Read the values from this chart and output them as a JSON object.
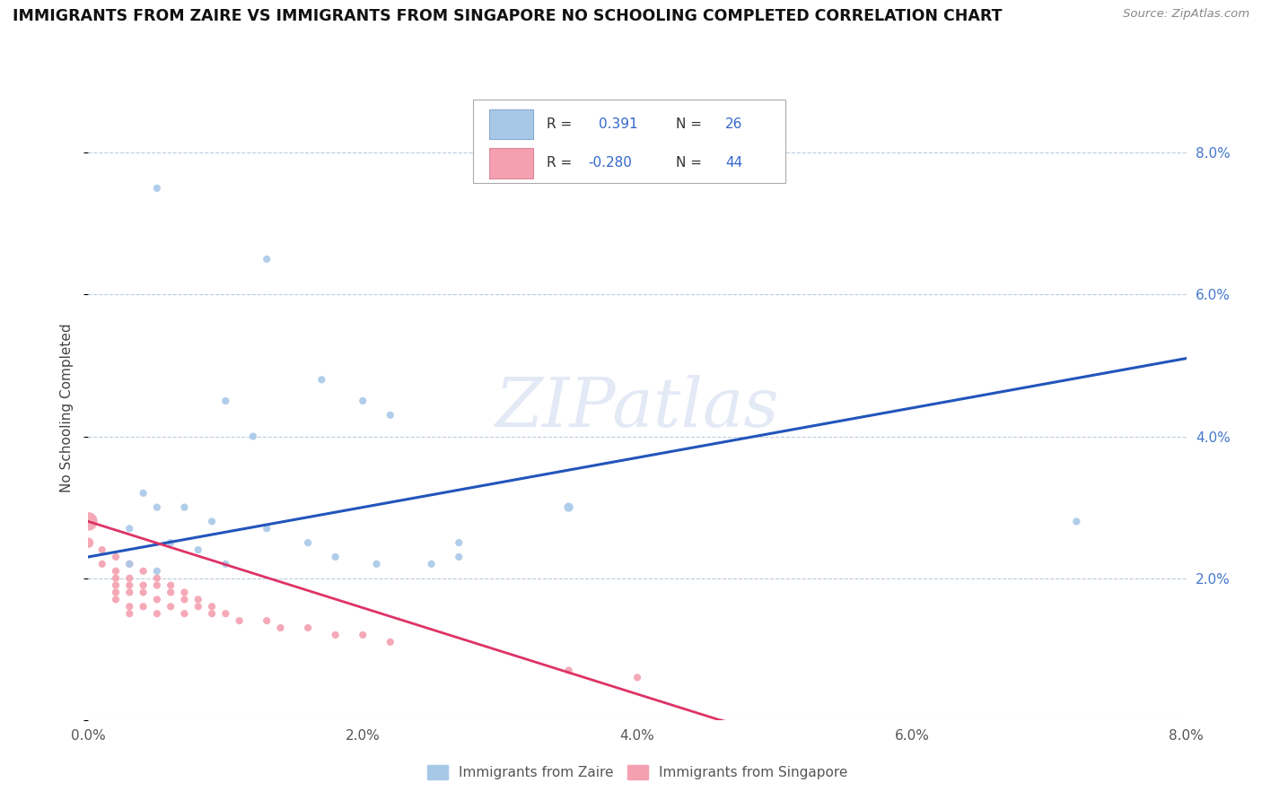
{
  "title": "IMMIGRANTS FROM ZAIRE VS IMMIGRANTS FROM SINGAPORE NO SCHOOLING COMPLETED CORRELATION CHART",
  "source": "Source: ZipAtlas.com",
  "ylabel": "No Schooling Completed",
  "xlim": [
    0.0,
    0.08
  ],
  "ylim": [
    0.0,
    0.088
  ],
  "ytick_labels": [
    "",
    "2.0%",
    "4.0%",
    "6.0%",
    "8.0%"
  ],
  "ytick_values": [
    0.0,
    0.02,
    0.04,
    0.06,
    0.08
  ],
  "xtick_labels": [
    "0.0%",
    "2.0%",
    "4.0%",
    "6.0%",
    "8.0%"
  ],
  "xtick_values": [
    0.0,
    0.02,
    0.04,
    0.06,
    0.08
  ],
  "zaire_R": 0.391,
  "zaire_N": 26,
  "singapore_R": -0.28,
  "singapore_N": 44,
  "zaire_color": "#a8c8e8",
  "singapore_color": "#f4a0b0",
  "zaire_line_color": "#2255bb",
  "singapore_line_color": "#dd3366",
  "watermark": "ZIPatlas",
  "zaire_line": [
    0.0,
    0.023,
    0.08,
    0.051
  ],
  "singapore_line": [
    0.0,
    0.028,
    0.046,
    0.0
  ],
  "singapore_line_dashed": [
    0.046,
    0.0,
    0.068,
    -0.01
  ],
  "zaire_points": [
    [
      0.005,
      0.075
    ],
    [
      0.013,
      0.065
    ],
    [
      0.01,
      0.045
    ],
    [
      0.012,
      0.04
    ],
    [
      0.017,
      0.048
    ],
    [
      0.02,
      0.045
    ],
    [
      0.022,
      0.043
    ],
    [
      0.004,
      0.032
    ],
    [
      0.005,
      0.03
    ],
    [
      0.003,
      0.027
    ],
    [
      0.006,
      0.025
    ],
    [
      0.007,
      0.03
    ],
    [
      0.009,
      0.028
    ],
    [
      0.003,
      0.022
    ],
    [
      0.005,
      0.021
    ],
    [
      0.008,
      0.024
    ],
    [
      0.01,
      0.022
    ],
    [
      0.013,
      0.027
    ],
    [
      0.016,
      0.025
    ],
    [
      0.018,
      0.023
    ],
    [
      0.021,
      0.022
    ],
    [
      0.025,
      0.022
    ],
    [
      0.027,
      0.025
    ],
    [
      0.027,
      0.023
    ],
    [
      0.035,
      0.03
    ],
    [
      0.072,
      0.028
    ]
  ],
  "singapore_points": [
    [
      0.0,
      0.028
    ],
    [
      0.0,
      0.025
    ],
    [
      0.001,
      0.024
    ],
    [
      0.001,
      0.022
    ],
    [
      0.002,
      0.023
    ],
    [
      0.002,
      0.021
    ],
    [
      0.002,
      0.02
    ],
    [
      0.002,
      0.019
    ],
    [
      0.002,
      0.018
    ],
    [
      0.002,
      0.017
    ],
    [
      0.003,
      0.022
    ],
    [
      0.003,
      0.02
    ],
    [
      0.003,
      0.019
    ],
    [
      0.003,
      0.018
    ],
    [
      0.003,
      0.016
    ],
    [
      0.003,
      0.015
    ],
    [
      0.004,
      0.021
    ],
    [
      0.004,
      0.019
    ],
    [
      0.004,
      0.018
    ],
    [
      0.004,
      0.016
    ],
    [
      0.005,
      0.02
    ],
    [
      0.005,
      0.019
    ],
    [
      0.005,
      0.017
    ],
    [
      0.005,
      0.015
    ],
    [
      0.006,
      0.019
    ],
    [
      0.006,
      0.018
    ],
    [
      0.006,
      0.016
    ],
    [
      0.007,
      0.018
    ],
    [
      0.007,
      0.017
    ],
    [
      0.007,
      0.015
    ],
    [
      0.008,
      0.017
    ],
    [
      0.008,
      0.016
    ],
    [
      0.009,
      0.016
    ],
    [
      0.009,
      0.015
    ],
    [
      0.01,
      0.015
    ],
    [
      0.011,
      0.014
    ],
    [
      0.013,
      0.014
    ],
    [
      0.014,
      0.013
    ],
    [
      0.016,
      0.013
    ],
    [
      0.018,
      0.012
    ],
    [
      0.02,
      0.012
    ],
    [
      0.022,
      0.011
    ],
    [
      0.035,
      0.007
    ],
    [
      0.04,
      0.006
    ]
  ],
  "zaire_sizes": [
    35,
    35,
    35,
    35,
    35,
    35,
    35,
    35,
    35,
    35,
    35,
    35,
    35,
    35,
    35,
    35,
    35,
    35,
    35,
    35,
    35,
    35,
    35,
    35,
    55,
    35
  ],
  "singapore_sizes": [
    220,
    70,
    35,
    35,
    35,
    35,
    35,
    35,
    35,
    35,
    35,
    35,
    35,
    35,
    35,
    35,
    35,
    35,
    35,
    35,
    35,
    35,
    35,
    35,
    35,
    35,
    35,
    35,
    35,
    35,
    35,
    35,
    35,
    35,
    35,
    35,
    35,
    35,
    35,
    35,
    35,
    35,
    35,
    35
  ]
}
